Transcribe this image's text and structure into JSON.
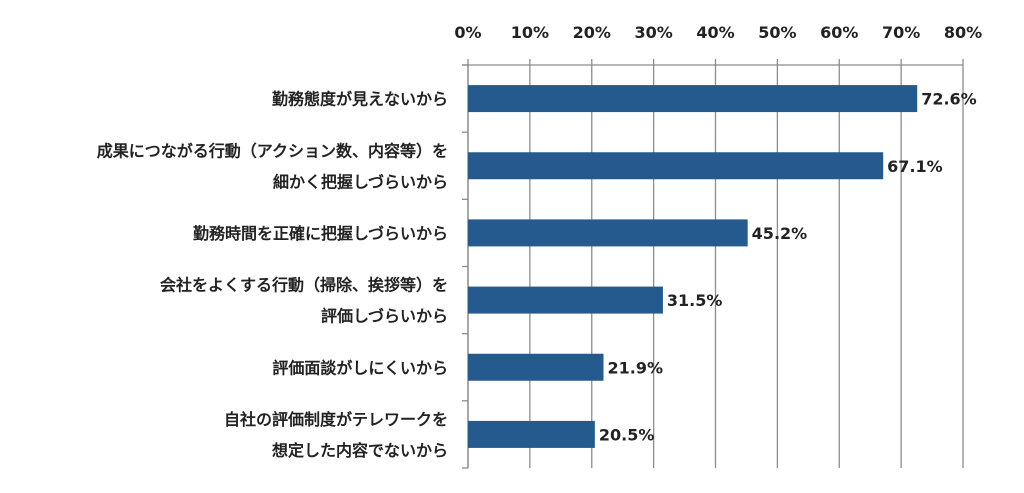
{
  "chart_data": {
    "type": "bar",
    "orientation": "horizontal",
    "categories": [
      [
        "勤務態度が見えないから"
      ],
      [
        "成果につながる行動（アクション数、内容等）を",
        "細かく把握しづらいから"
      ],
      [
        "勤務時間を正確に把握しづらいから"
      ],
      [
        "会社をよくする行動（掃除、挨拶等）を",
        "評価しづらいから"
      ],
      [
        "評価面談がしにくいから"
      ],
      [
        "自社の評価制度がテレワークを",
        "想定した内容でないから"
      ]
    ],
    "values": [
      72.6,
      67.1,
      45.2,
      31.5,
      21.9,
      20.5
    ],
    "value_labels": [
      "72.6%",
      "67.1%",
      "45.2%",
      "31.5%",
      "21.9%",
      "20.5%"
    ],
    "xlim": [
      0,
      80
    ],
    "xticks": [
      0,
      10,
      20,
      30,
      40,
      50,
      60,
      70,
      80
    ],
    "xtick_labels": [
      "0%",
      "10%",
      "20%",
      "30%",
      "40%",
      "50%",
      "60%",
      "70%",
      "80%"
    ],
    "x_axis_position": "top",
    "grid": true,
    "bar_color": "#245a8e",
    "grid_color": "#8c8c8c",
    "title": "",
    "xlabel": "",
    "ylabel": ""
  }
}
